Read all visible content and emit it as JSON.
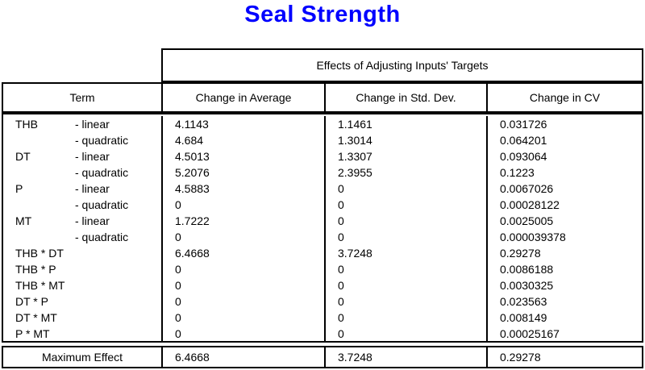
{
  "chart_data": {
    "type": "table",
    "title": "Seal Strength",
    "span_header": "Effects of Adjusting Inputs' Targets",
    "columns": [
      "Term",
      "Change in Average",
      "Change in Std. Dev.",
      "Change in CV"
    ],
    "rows": [
      {
        "term": "THB",
        "order": "- linear",
        "avg": "4.1143",
        "std": "1.1461",
        "cv": "0.031726"
      },
      {
        "term": "",
        "order": "- quadratic",
        "avg": "4.684",
        "std": "1.3014",
        "cv": "0.064201"
      },
      {
        "term": "DT",
        "order": "- linear",
        "avg": "4.5013",
        "std": "1.3307",
        "cv": "0.093064"
      },
      {
        "term": "",
        "order": "- quadratic",
        "avg": "5.2076",
        "std": "2.3955",
        "cv": "0.1223"
      },
      {
        "term": "P",
        "order": "- linear",
        "avg": "4.5883",
        "std": "0",
        "cv": "0.0067026"
      },
      {
        "term": "",
        "order": "- quadratic",
        "avg": "0",
        "std": "0",
        "cv": "0.00028122"
      },
      {
        "term": "MT",
        "order": "- linear",
        "avg": "1.7222",
        "std": "0",
        "cv": "0.0025005"
      },
      {
        "term": "",
        "order": "- quadratic",
        "avg": "0",
        "std": "0",
        "cv": "0.000039378"
      },
      {
        "term": "THB * DT",
        "order": "",
        "avg": "6.4668",
        "std": "3.7248",
        "cv": "0.29278"
      },
      {
        "term": "THB * P",
        "order": "",
        "avg": "0",
        "std": "0",
        "cv": "0.0086188"
      },
      {
        "term": "THB * MT",
        "order": "",
        "avg": "0",
        "std": "0",
        "cv": "0.0030325"
      },
      {
        "term": "DT * P",
        "order": "",
        "avg": "0",
        "std": "0",
        "cv": "0.023563"
      },
      {
        "term": "DT * MT",
        "order": "",
        "avg": "0",
        "std": "0",
        "cv": "0.008149"
      },
      {
        "term": "P * MT",
        "order": "",
        "avg": "0",
        "std": "0",
        "cv": "0.00025167"
      }
    ],
    "footer": {
      "label": "Maximum Effect",
      "avg": "6.4668",
      "std": "3.7248",
      "cv": "0.29278"
    }
  },
  "colors": {
    "title": "#0000ff",
    "border": "#000000",
    "text": "#000000",
    "background": "#ffffff"
  }
}
